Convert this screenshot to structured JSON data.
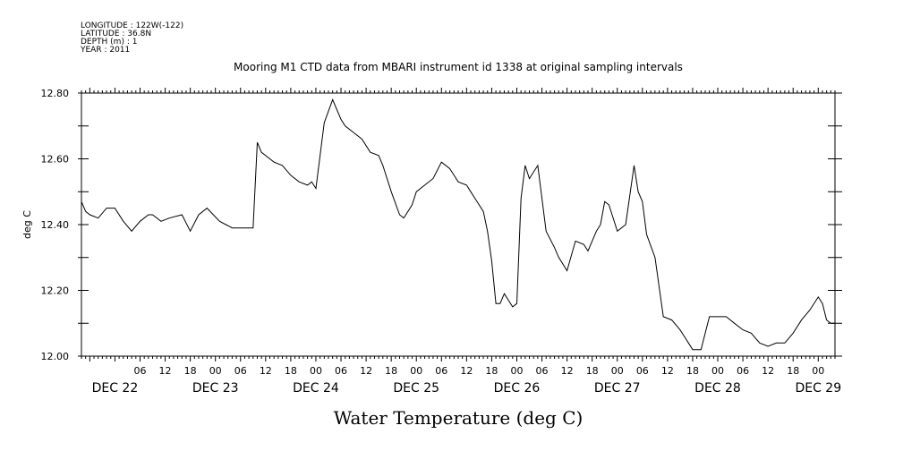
{
  "header": {
    "lines": [
      "LONGITUDE : 122W(-122)",
      "LATITUDE : 36.8N",
      "DEPTH (m) : 1",
      "YEAR : 2011"
    ]
  },
  "chart_data": {
    "type": "line",
    "title": "Mooring M1 CTD data from MBARI instrument id 1338 at original sampling intervals",
    "xlabel": "Water Temperature (deg C)",
    "ylabel": "deg C",
    "ylim": [
      12.0,
      12.8
    ],
    "xlim": [
      "2011-12-21T16:00",
      "2011-12-29T04:00"
    ],
    "y_ticks": [
      "12.00",
      "12.20",
      "12.40",
      "12.60",
      "12.80"
    ],
    "x_hour_ticks": [
      {
        "t": "2011-12-22T06:00",
        "label": "06"
      },
      {
        "t": "2011-12-22T12:00",
        "label": "12"
      },
      {
        "t": "2011-12-22T18:00",
        "label": "18"
      },
      {
        "t": "2011-12-23T00:00",
        "label": "00"
      },
      {
        "t": "2011-12-23T06:00",
        "label": "06"
      },
      {
        "t": "2011-12-23T12:00",
        "label": "12"
      },
      {
        "t": "2011-12-23T18:00",
        "label": "18"
      },
      {
        "t": "2011-12-24T00:00",
        "label": "00"
      },
      {
        "t": "2011-12-24T06:00",
        "label": "06"
      },
      {
        "t": "2011-12-24T12:00",
        "label": "12"
      },
      {
        "t": "2011-12-24T18:00",
        "label": "18"
      },
      {
        "t": "2011-12-25T00:00",
        "label": "00"
      },
      {
        "t": "2011-12-25T06:00",
        "label": "06"
      },
      {
        "t": "2011-12-25T12:00",
        "label": "12"
      },
      {
        "t": "2011-12-25T18:00",
        "label": "18"
      },
      {
        "t": "2011-12-26T00:00",
        "label": "00"
      },
      {
        "t": "2011-12-26T06:00",
        "label": "06"
      },
      {
        "t": "2011-12-26T12:00",
        "label": "12"
      },
      {
        "t": "2011-12-26T18:00",
        "label": "18"
      },
      {
        "t": "2011-12-27T00:00",
        "label": "00"
      },
      {
        "t": "2011-12-27T06:00",
        "label": "06"
      },
      {
        "t": "2011-12-27T12:00",
        "label": "12"
      },
      {
        "t": "2011-12-27T18:00",
        "label": "18"
      },
      {
        "t": "2011-12-28T00:00",
        "label": "00"
      },
      {
        "t": "2011-12-28T06:00",
        "label": "06"
      },
      {
        "t": "2011-12-28T12:00",
        "label": "12"
      },
      {
        "t": "2011-12-28T18:00",
        "label": "18"
      },
      {
        "t": "2011-12-29T00:00",
        "label": "00"
      }
    ],
    "x_day_labels": [
      {
        "t": "2011-12-22T00:00",
        "label": "DEC 22"
      },
      {
        "t": "2011-12-23T00:00",
        "label": "DEC 23"
      },
      {
        "t": "2011-12-24T00:00",
        "label": "DEC 24"
      },
      {
        "t": "2011-12-25T00:00",
        "label": "DEC 25"
      },
      {
        "t": "2011-12-26T00:00",
        "label": "DEC 26"
      },
      {
        "t": "2011-12-27T00:00",
        "label": "DEC 27"
      },
      {
        "t": "2011-12-28T00:00",
        "label": "DEC 28"
      },
      {
        "t": "2011-12-29T00:00",
        "label": "DEC 29"
      }
    ],
    "series": [
      {
        "x": [
          "2011-12-21T16:00",
          "2011-12-21T17:00",
          "2011-12-21T18:00",
          "2011-12-21T20:00",
          "2011-12-21T22:00",
          "2011-12-22T00:00",
          "2011-12-22T02:00",
          "2011-12-22T04:00",
          "2011-12-22T06:00",
          "2011-12-22T08:00",
          "2011-12-22T09:00",
          "2011-12-22T11:00",
          "2011-12-22T13:00",
          "2011-12-22T16:00",
          "2011-12-22T18:00",
          "2011-12-22T20:00",
          "2011-12-22T22:00",
          "2011-12-23T01:00",
          "2011-12-23T04:00",
          "2011-12-23T06:00",
          "2011-12-23T09:00",
          "2011-12-23T10:00",
          "2011-12-23T11:00",
          "2011-12-23T13:00",
          "2011-12-23T14:00",
          "2011-12-23T16:00",
          "2011-12-23T18:00",
          "2011-12-23T20:00",
          "2011-12-23T22:00",
          "2011-12-23T23:00",
          "2011-12-24T00:00",
          "2011-12-24T02:00",
          "2011-12-24T04:00",
          "2011-12-24T06:00",
          "2011-12-24T07:00",
          "2011-12-24T09:00",
          "2011-12-24T11:00",
          "2011-12-24T13:00",
          "2011-12-24T15:00",
          "2011-12-24T16:00",
          "2011-12-24T18:00",
          "2011-12-24T20:00",
          "2011-12-24T21:00",
          "2011-12-24T23:00",
          "2011-12-25T00:00",
          "2011-12-25T02:00",
          "2011-12-25T04:00",
          "2011-12-25T06:00",
          "2011-12-25T08:00",
          "2011-12-25T10:00",
          "2011-12-25T12:00",
          "2011-12-25T13:00",
          "2011-12-25T14:00",
          "2011-12-25T16:00",
          "2011-12-25T17:00",
          "2011-12-25T18:00",
          "2011-12-25T19:00",
          "2011-12-25T20:00",
          "2011-12-25T21:00",
          "2011-12-25T22:00",
          "2011-12-25T23:00",
          "2011-12-26T00:00",
          "2011-12-26T01:00",
          "2011-12-26T02:00",
          "2011-12-26T03:00",
          "2011-12-26T05:00",
          "2011-12-26T07:00",
          "2011-12-26T09:00",
          "2011-12-26T10:00",
          "2011-12-26T12:00",
          "2011-12-26T14:00",
          "2011-12-26T16:00",
          "2011-12-26T17:00",
          "2011-12-26T19:00",
          "2011-12-26T20:00",
          "2011-12-26T21:00",
          "2011-12-26T22:00",
          "2011-12-27T00:00",
          "2011-12-27T02:00",
          "2011-12-27T04:00",
          "2011-12-27T05:00",
          "2011-12-27T06:00",
          "2011-12-27T07:00",
          "2011-12-27T09:00",
          "2011-12-27T11:00",
          "2011-12-27T13:00",
          "2011-12-27T15:00",
          "2011-12-27T16:00",
          "2011-12-27T17:00",
          "2011-12-27T18:00",
          "2011-12-27T20:00",
          "2011-12-27T22:00",
          "2011-12-28T00:00",
          "2011-12-28T02:00",
          "2011-12-28T04:00",
          "2011-12-28T06:00",
          "2011-12-28T08:00",
          "2011-12-28T10:00",
          "2011-12-28T12:00",
          "2011-12-28T14:00",
          "2011-12-28T16:00",
          "2011-12-28T18:00",
          "2011-12-28T20:00",
          "2011-12-28T22:00",
          "2011-12-29T00:00",
          "2011-12-29T01:00",
          "2011-12-29T02:00",
          "2011-12-29T03:00",
          "2011-12-29T04:00"
        ],
        "y": [
          12.47,
          12.44,
          12.43,
          12.42,
          12.45,
          12.45,
          12.41,
          12.38,
          12.41,
          12.43,
          12.43,
          12.41,
          12.42,
          12.43,
          12.38,
          12.43,
          12.45,
          12.41,
          12.39,
          12.39,
          12.39,
          12.65,
          12.62,
          12.6,
          12.59,
          12.58,
          12.55,
          12.53,
          12.52,
          12.53,
          12.51,
          12.71,
          12.78,
          12.72,
          12.7,
          12.68,
          12.66,
          12.62,
          12.61,
          12.58,
          12.5,
          12.43,
          12.42,
          12.46,
          12.5,
          12.52,
          12.54,
          12.59,
          12.57,
          12.53,
          12.52,
          12.5,
          12.48,
          12.44,
          12.38,
          12.29,
          12.16,
          12.16,
          12.19,
          12.17,
          12.15,
          12.16,
          12.48,
          12.58,
          12.54,
          12.58,
          12.38,
          12.33,
          12.3,
          12.26,
          12.35,
          12.34,
          12.32,
          12.38,
          12.4,
          12.47,
          12.46,
          12.38,
          12.4,
          12.58,
          12.5,
          12.47,
          12.37,
          12.3,
          12.12,
          12.11,
          12.08,
          12.06,
          12.04,
          12.02,
          12.02,
          12.12,
          12.12,
          12.12,
          12.1,
          12.08,
          12.07,
          12.04,
          12.03,
          12.04,
          12.04,
          12.07,
          12.11,
          12.14,
          12.18,
          12.16,
          12.11,
          12.1,
          12.1
        ]
      }
    ]
  }
}
